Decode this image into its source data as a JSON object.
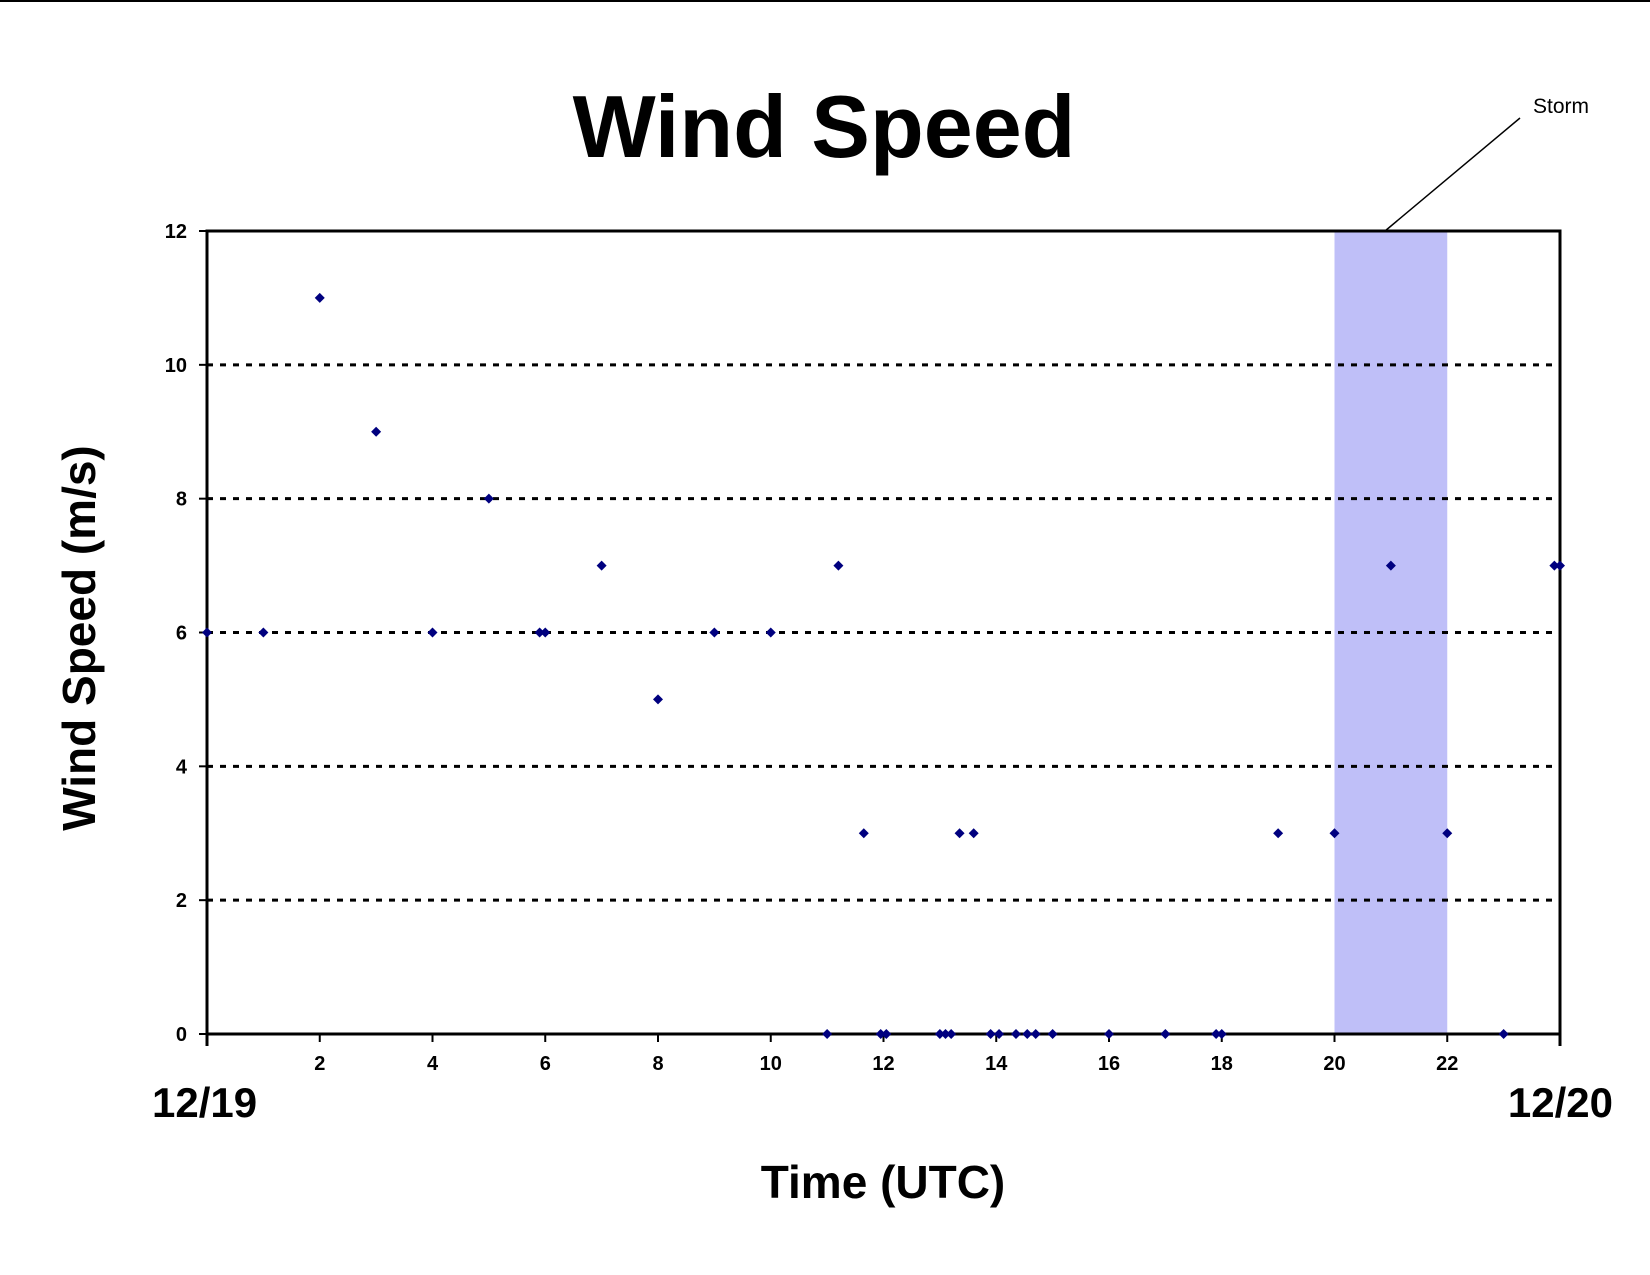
{
  "chart_data": {
    "type": "scatter",
    "title": "Wind Speed",
    "xlabel": "Time (UTC)",
    "ylabel": "Wind Speed (m/s)",
    "x_start_label": "12/19",
    "x_end_label": "12/20",
    "xlim": [
      0,
      24
    ],
    "ylim": [
      0,
      12
    ],
    "x_ticks": [
      2,
      4,
      6,
      8,
      10,
      12,
      14,
      16,
      18,
      20,
      22
    ],
    "y_ticks": [
      0,
      2,
      4,
      6,
      8,
      10,
      12
    ],
    "y_gridlines": [
      2,
      4,
      6,
      8,
      10
    ],
    "grid_style": "dotted horizontal",
    "marker": "diamond",
    "marker_color": "#00007f",
    "shaded_region": {
      "x_start": 20,
      "x_end": 22,
      "color": "#bfbff8",
      "label": "Storm"
    },
    "points": [
      [
        0,
        6
      ],
      [
        1,
        6
      ],
      [
        2,
        11
      ],
      [
        3,
        9
      ],
      [
        4,
        6
      ],
      [
        5,
        8
      ],
      [
        5.9,
        6
      ],
      [
        6,
        6
      ],
      [
        7,
        7
      ],
      [
        8,
        5
      ],
      [
        9,
        6
      ],
      [
        10,
        6
      ],
      [
        11,
        0
      ],
      [
        11.2,
        7
      ],
      [
        11.65,
        3
      ],
      [
        11.95,
        0
      ],
      [
        12.05,
        0
      ],
      [
        13.0,
        0
      ],
      [
        13.1,
        0
      ],
      [
        13.2,
        0
      ],
      [
        13.35,
        3
      ],
      [
        13.6,
        3
      ],
      [
        13.9,
        0
      ],
      [
        14.05,
        0
      ],
      [
        14.35,
        0
      ],
      [
        14.55,
        0
      ],
      [
        14.7,
        0
      ],
      [
        15,
        0
      ],
      [
        16,
        0
      ],
      [
        17,
        0
      ],
      [
        17.9,
        0
      ],
      [
        18,
        0
      ],
      [
        19,
        3
      ],
      [
        20,
        3
      ],
      [
        21,
        7
      ],
      [
        22,
        3
      ],
      [
        23,
        0
      ],
      [
        23.9,
        7
      ],
      [
        24,
        7
      ]
    ]
  }
}
